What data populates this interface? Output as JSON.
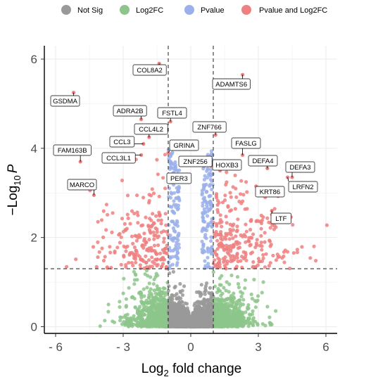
{
  "chart_data": {
    "type": "scatter",
    "title": "",
    "xlabel_main": "Log",
    "xlabel_sub": "2",
    "xlabel_rest": " fold change",
    "ylabel_prefix": "−Log",
    "ylabel_sub": "10",
    "ylabel_var": "P",
    "xlim": [
      -6.5,
      6.5
    ],
    "ylim": [
      -0.15,
      6.3
    ],
    "x_ticks": [
      -6,
      -3,
      0,
      3,
      6
    ],
    "x_tick_labels": [
      "- 6",
      "- 3",
      "0",
      "3",
      "6"
    ],
    "y_ticks": [
      0,
      2,
      4,
      6
    ],
    "y_tick_labels": [
      "0",
      "2",
      "4",
      "6"
    ],
    "grid": true,
    "legend_position": "top",
    "thresholds": {
      "log2fc": [
        -1,
        1
      ],
      "neg_log10_p": 1.3
    },
    "series": [
      {
        "name": "Not Sig",
        "color": "#999999"
      },
      {
        "name": "Log2FC",
        "color": "#8dc58b"
      },
      {
        "name": "Pvalue",
        "color": "#9bb0ea"
      },
      {
        "name": "Pvalue and Log2FC",
        "color": "#ef8080"
      }
    ],
    "labeled_genes": [
      {
        "gene": "COL8A2",
        "x": -1.4,
        "y": 5.9
      },
      {
        "gene": "ADAMTS6",
        "x": 2.3,
        "y": 5.65
      },
      {
        "gene": "GSDMA",
        "x": -5.2,
        "y": 5.25
      },
      {
        "gene": "ADRA2B",
        "x": -2.2,
        "y": 4.65
      },
      {
        "gene": "FSTL4",
        "x": -0.9,
        "y": 4.6
      },
      {
        "gene": "CCL4L2",
        "x": -1.85,
        "y": 4.25
      },
      {
        "gene": "ZNF766",
        "x": 1.1,
        "y": 4.3
      },
      {
        "gene": "CCL3",
        "x": -2.1,
        "y": 4.1
      },
      {
        "gene": "FASLG",
        "x": 2.3,
        "y": 3.85
      },
      {
        "gene": "GRINA",
        "x": -1.0,
        "y": 3.9
      },
      {
        "gene": "FAM163B",
        "x": -4.9,
        "y": 3.7
      },
      {
        "gene": "CCL3L1",
        "x": -2.2,
        "y": 3.85
      },
      {
        "gene": "ZNF256",
        "x": 0.9,
        "y": 3.6
      },
      {
        "gene": "HOXB3",
        "x": 1.3,
        "y": 3.5
      },
      {
        "gene": "DEFA4",
        "x": 3.4,
        "y": 3.55
      },
      {
        "gene": "DEFA3",
        "x": 4.5,
        "y": 3.35
      },
      {
        "gene": "PER3",
        "x": -0.9,
        "y": 3.4
      },
      {
        "gene": "LRFN2",
        "x": 4.3,
        "y": 3.35
      },
      {
        "gene": "MARCO",
        "x": -4.3,
        "y": 2.95
      },
      {
        "gene": "KRT86",
        "x": 2.9,
        "y": 3.15
      },
      {
        "gene": "LTF",
        "x": 3.6,
        "y": 2.6
      }
    ]
  }
}
